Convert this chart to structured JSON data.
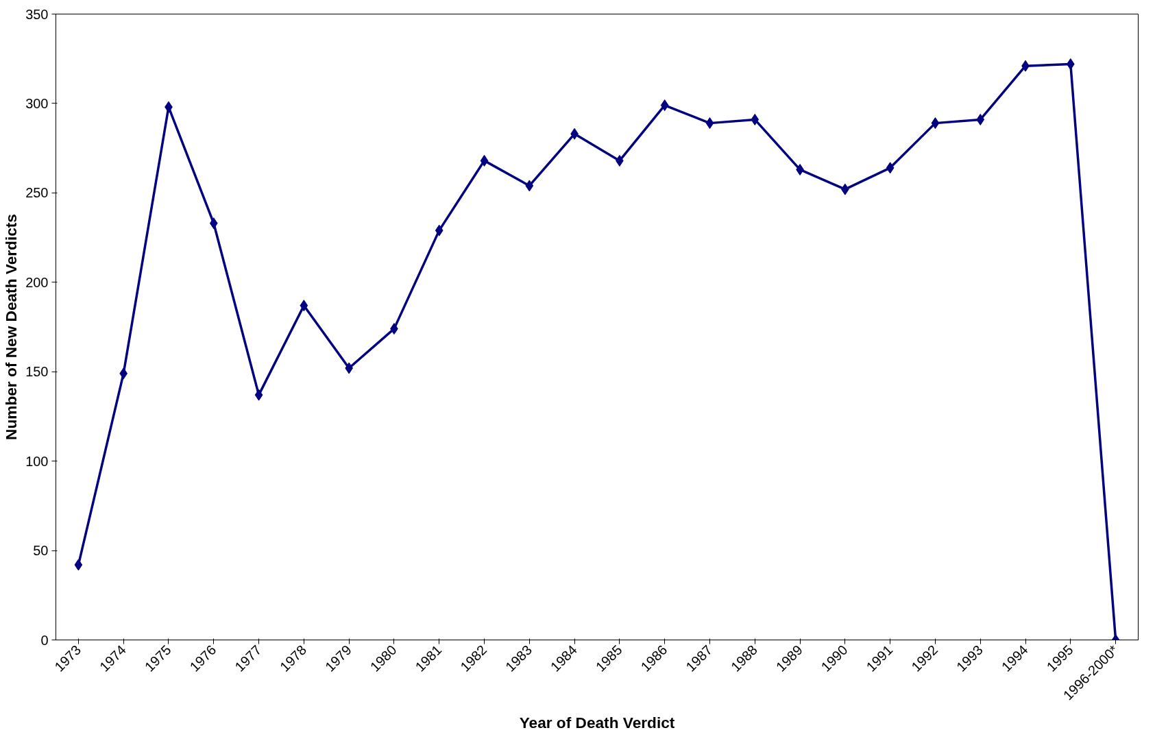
{
  "chart_data": {
    "type": "line",
    "xlabel": "Year of Death Verdict",
    "ylabel": "Number of New Death Verdicts",
    "categories": [
      "1973",
      "1974",
      "1975",
      "1976",
      "1977",
      "1978",
      "1979",
      "1980",
      "1981",
      "1982",
      "1983",
      "1984",
      "1985",
      "1986",
      "1987",
      "1988",
      "1989",
      "1990",
      "1991",
      "1992",
      "1993",
      "1994",
      "1995",
      "1996-2000*"
    ],
    "series": [
      {
        "color": "#000080",
        "values": [
          42,
          149,
          298,
          233,
          137,
          187,
          152,
          174,
          229,
          268,
          254,
          283,
          268,
          299,
          289,
          291,
          263,
          252,
          264,
          289,
          291,
          321,
          322,
          0
        ]
      }
    ],
    "ylim": [
      0,
      350
    ],
    "yticks": [
      0,
      50,
      100,
      150,
      200,
      250,
      300,
      350
    ],
    "grid": false,
    "marker": "diamond",
    "line_style": "solid"
  }
}
